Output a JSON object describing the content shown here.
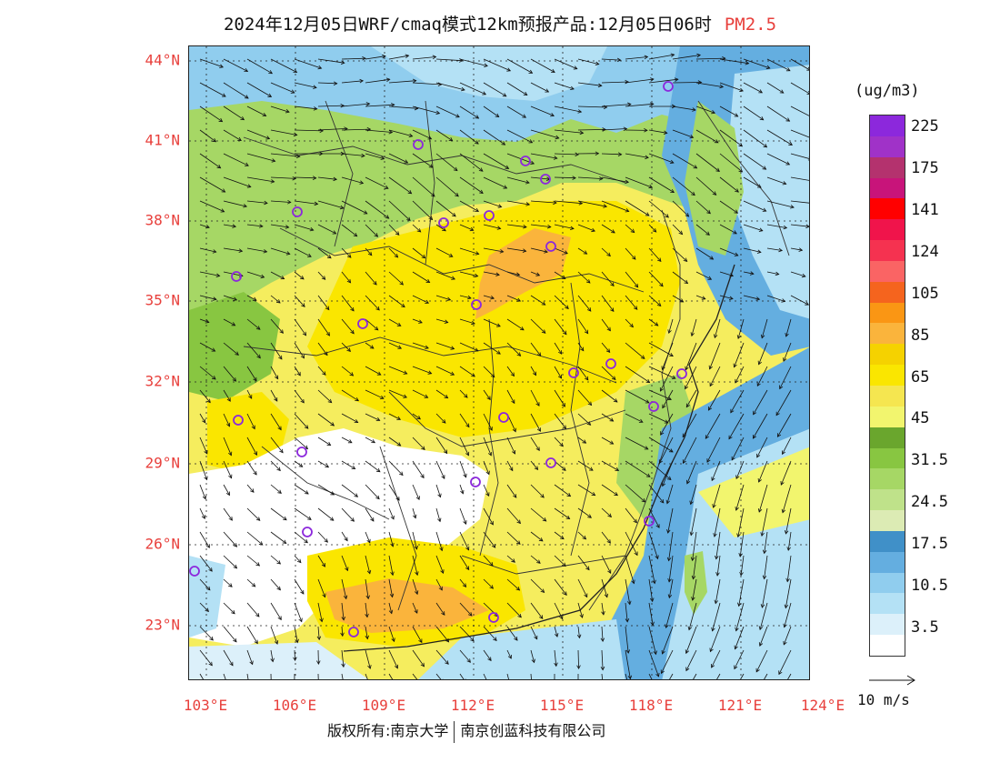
{
  "title": {
    "main": "2024年12月05日WRF/cmaq模式12km预报产品:12月05日06时",
    "pollutant": "PM2.5"
  },
  "lat_labels": [
    "44°N",
    "41°N",
    "38°N",
    "35°N",
    "32°N",
    "29°N",
    "26°N",
    "23°N"
  ],
  "lon_labels": [
    "103°E",
    "106°E",
    "109°E",
    "112°E",
    "115°E",
    "118°E",
    "121°E",
    "124°E"
  ],
  "colorbar": {
    "units": "(ug/m3)",
    "colors": [
      "#ffffff",
      "#dcf0fa",
      "#b4e1f5",
      "#90cdee",
      "#64aee0",
      "#4090c8",
      "#dcebb4",
      "#bfe28a",
      "#a6d765",
      "#88c641",
      "#6aa62d",
      "#f2f56e",
      "#f5e650",
      "#fae600",
      "#f5d200",
      "#fab43c",
      "#fa9614",
      "#f5641e",
      "#fa6464",
      "#f53250",
      "#f0144b",
      "#ff0000",
      "#c8147a",
      "#b4326e",
      "#a032c8",
      "#8c28dc"
    ],
    "labels": [
      "3.5",
      "10.5",
      "17.5",
      "24.5",
      "31.5",
      "45",
      "65",
      "85",
      "105",
      "124",
      "141",
      "175",
      "225"
    ]
  },
  "reference_vector": {
    "label": "10 m/s"
  },
  "footer": {
    "copyright": "版权所有:南京大学",
    "company": "南京创蓝科技有限公司"
  }
}
